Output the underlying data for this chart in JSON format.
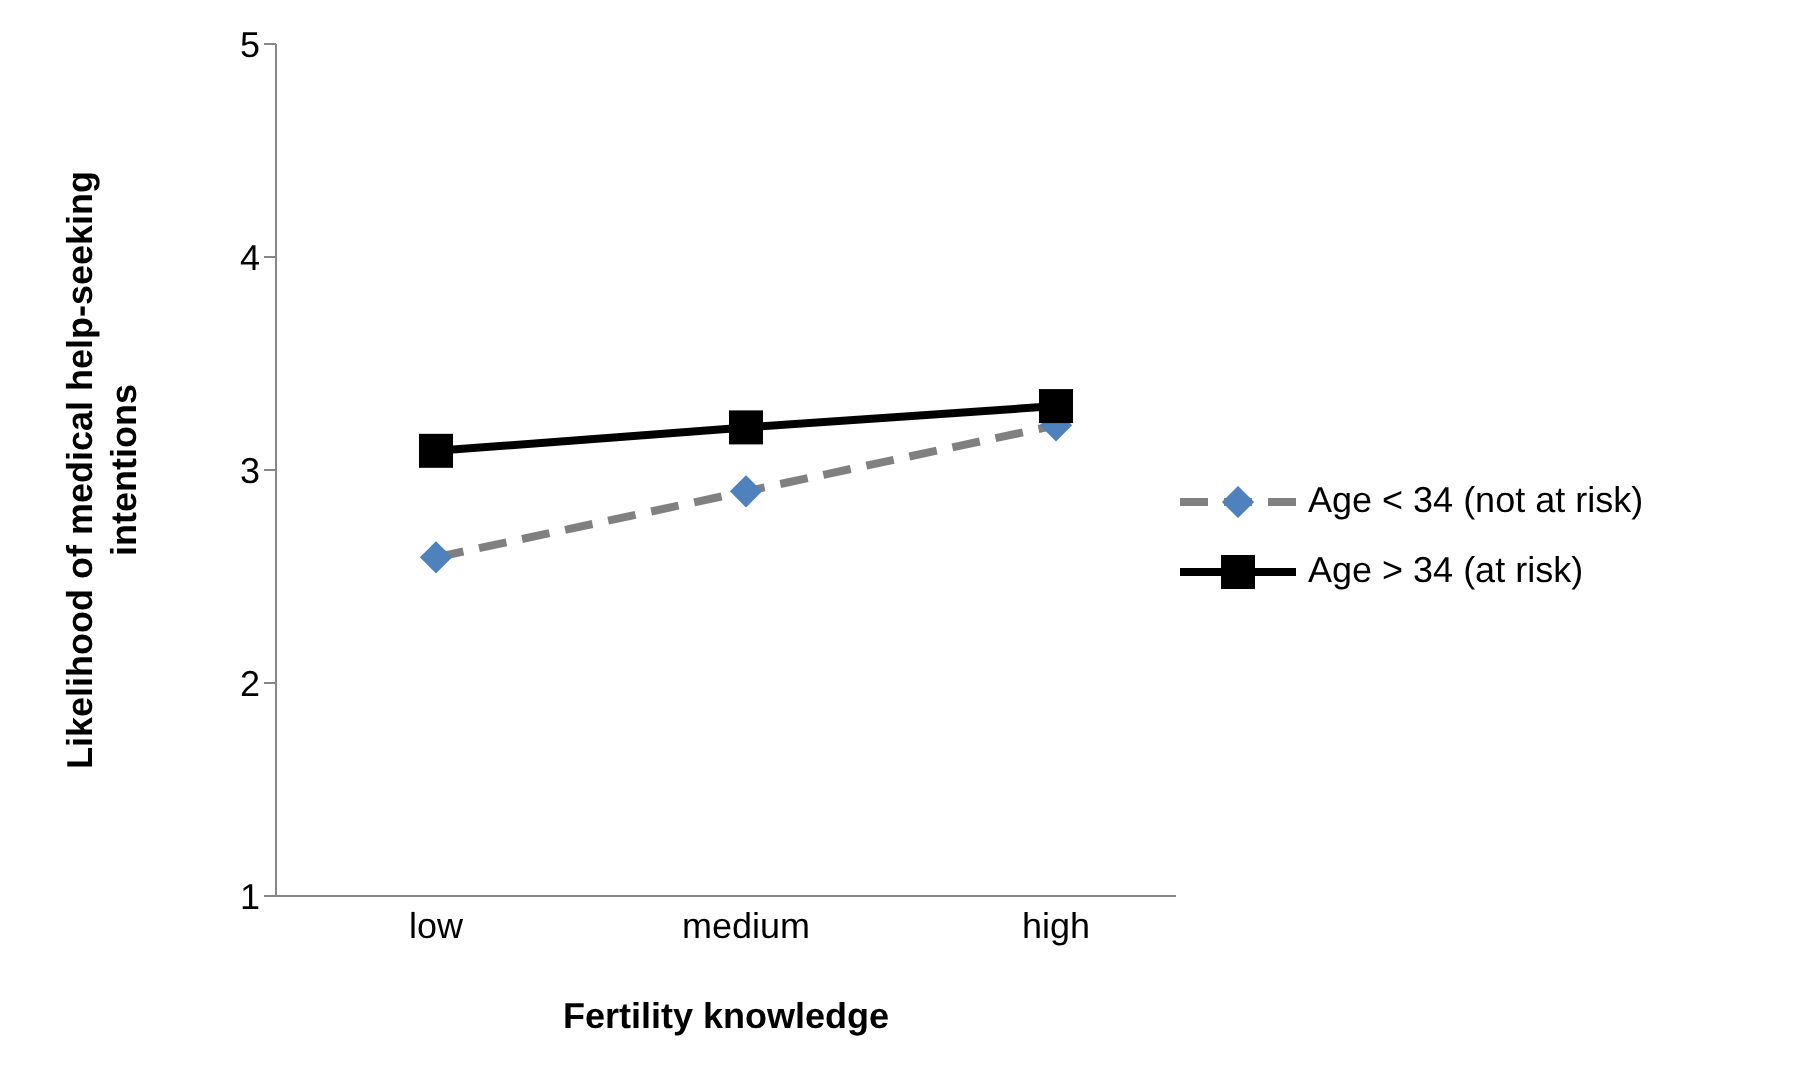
{
  "chart_data": {
    "type": "line",
    "xlabel": "Fertility knowledge",
    "ylabel": "Likelihood of medical help-seeking intentions",
    "categories": [
      "low",
      "medium",
      "high"
    ],
    "series": [
      {
        "name": "Age < 34 (not at risk)",
        "color": "#808080",
        "values": [
          2.59,
          2.9,
          3.21
        ],
        "marker": "diamond",
        "line_style": "dashed",
        "colors": [
          "#4f81bd",
          "#4f81bd",
          "#4f81bd"
        ]
      },
      {
        "name": "Age > 34 (at risk)",
        "color": "#000000",
        "values": [
          3.09,
          3.2,
          3.3
        ],
        "marker": "square",
        "line_style": "solid"
      }
    ],
    "ylim": [
      1,
      5
    ],
    "yticks": [
      1,
      2,
      3,
      4,
      5
    ],
    "grid": false,
    "legend": "right"
  }
}
